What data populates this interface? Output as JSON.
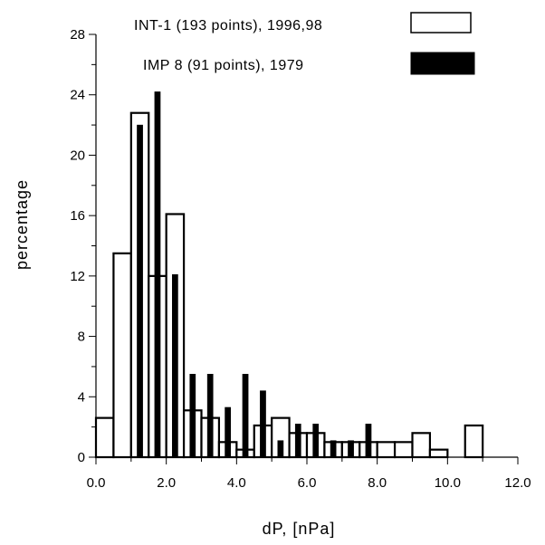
{
  "chart_data": {
    "type": "bar",
    "xlabel": "dP, [nPa]",
    "ylabel": "percentage",
    "xlim": [
      0,
      12
    ],
    "ylim": [
      0,
      28
    ],
    "x_ticks": [
      "0.0",
      "2.0",
      "4.0",
      "6.0",
      "8.0",
      "10.0",
      "12.0"
    ],
    "y_ticks": [
      "0",
      "4",
      "8",
      "12",
      "16",
      "20",
      "24",
      "28"
    ],
    "legend_position": "top-right",
    "series": [
      {
        "name": "INT-1 (193 points), 1996,98",
        "style": "open",
        "color": "#ffffff",
        "stroke": "#000000",
        "bin_width": 0.5,
        "x": [
          0.0,
          0.5,
          1.0,
          1.5,
          2.0,
          2.5,
          3.0,
          3.5,
          4.0,
          4.5,
          5.0,
          5.5,
          6.0,
          6.5,
          7.0,
          7.5,
          8.0,
          8.5,
          9.0,
          9.5,
          10.0,
          10.5
        ],
        "values": [
          2.6,
          13.5,
          22.8,
          12.0,
          16.1,
          3.1,
          2.6,
          1.0,
          0.5,
          2.1,
          2.6,
          1.6,
          1.6,
          1.0,
          1.0,
          1.0,
          1.0,
          1.0,
          1.6,
          0.5,
          0.0,
          2.1
        ]
      },
      {
        "name": "IMP 8 (91 points), 1979",
        "style": "filled",
        "color": "#000000",
        "bin_width": 0.16,
        "x": [
          1.25,
          1.75,
          2.25,
          2.75,
          3.25,
          3.75,
          4.25,
          4.75,
          5.25,
          5.75,
          6.25,
          6.75,
          7.25,
          7.75
        ],
        "values": [
          22.0,
          24.2,
          12.1,
          5.5,
          5.5,
          3.3,
          5.5,
          4.4,
          1.1,
          2.2,
          2.2,
          1.1,
          1.1,
          2.2
        ]
      }
    ]
  }
}
